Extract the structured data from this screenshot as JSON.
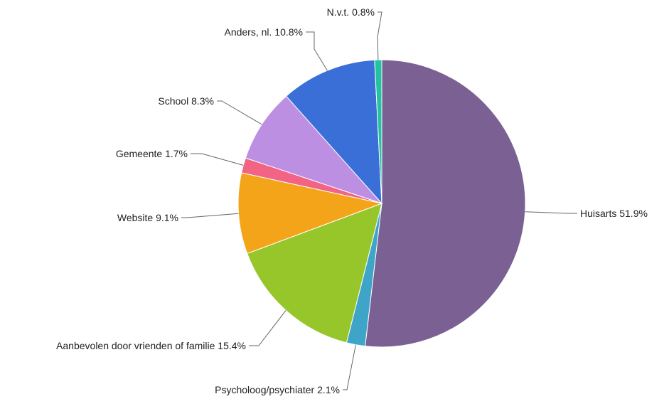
{
  "chart_data": {
    "type": "pie",
    "title": "",
    "slices": [
      {
        "label": "Huisarts 51.9%",
        "category": "Huisarts",
        "value": 51.9,
        "color": "#7b6193"
      },
      {
        "label": "Psycholoog/psychiater 2.1%",
        "category": "Psycholoog/psychiater",
        "value": 2.1,
        "color": "#3ea5c9"
      },
      {
        "label": "Aanbevolen door vrienden of familie 15.4%",
        "category": "Aanbevolen door vrienden of familie",
        "value": 15.4,
        "color": "#97c62a"
      },
      {
        "label": "Website 9.1%",
        "category": "Website",
        "value": 9.1,
        "color": "#f4a418"
      },
      {
        "label": "Gemeente 1.7%",
        "category": "Gemeente",
        "value": 1.7,
        "color": "#f26384"
      },
      {
        "label": "School 8.3%",
        "category": "School",
        "value": 8.3,
        "color": "#bc8fe3"
      },
      {
        "label": "Anders, nl. 10.8%",
        "category": "Anders, nl.",
        "value": 10.8,
        "color": "#3a6fd7"
      },
      {
        "label": "N.v.t. 0.8%",
        "category": "N.v.t.",
        "value": 0.8,
        "color": "#22c3a0"
      }
    ],
    "start_angle": "12 o'clock",
    "direction": "clockwise",
    "legend": "none",
    "value_unit": "%"
  }
}
